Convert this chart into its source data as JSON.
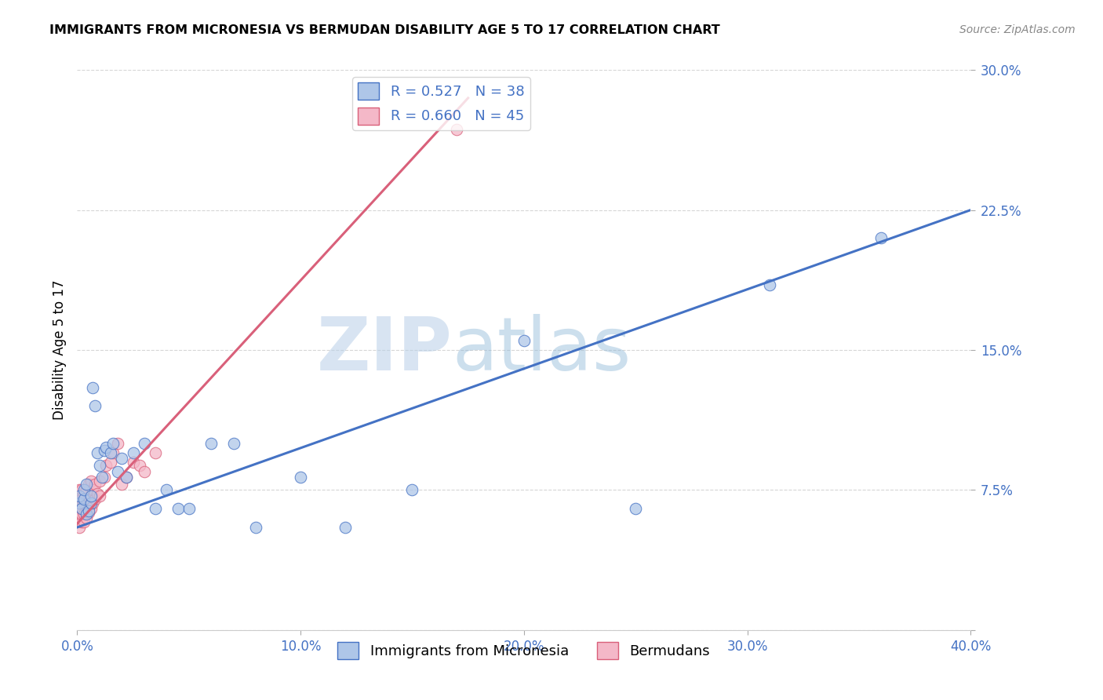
{
  "title": "IMMIGRANTS FROM MICRONESIA VS BERMUDAN DISABILITY AGE 5 TO 17 CORRELATION CHART",
  "source": "Source: ZipAtlas.com",
  "ylabel": "Disability Age 5 to 17",
  "xlim": [
    0,
    0.4
  ],
  "ylim": [
    0,
    0.3
  ],
  "xticks": [
    0.0,
    0.1,
    0.2,
    0.3,
    0.4
  ],
  "yticks": [
    0.0,
    0.075,
    0.15,
    0.225,
    0.3
  ],
  "xticklabels": [
    "0.0%",
    "10.0%",
    "20.0%",
    "30.0%",
    "40.0%"
  ],
  "yticklabels": [
    "",
    "7.5%",
    "15.0%",
    "22.5%",
    "30.0%"
  ],
  "legend_blue_r": "R = 0.527",
  "legend_blue_n": "N = 38",
  "legend_pink_r": "R = 0.660",
  "legend_pink_n": "N = 45",
  "legend_blue_label": "Immigrants from Micronesia",
  "legend_pink_label": "Bermudans",
  "blue_color": "#aec6e8",
  "blue_line_color": "#4472c4",
  "pink_color": "#f4b8c8",
  "pink_line_color": "#d9607a",
  "watermark_zip": "ZIP",
  "watermark_atlas": "atlas",
  "blue_scatter_x": [
    0.001,
    0.001,
    0.002,
    0.003,
    0.003,
    0.004,
    0.004,
    0.005,
    0.006,
    0.006,
    0.007,
    0.008,
    0.009,
    0.01,
    0.011,
    0.012,
    0.013,
    0.015,
    0.016,
    0.018,
    0.02,
    0.022,
    0.025,
    0.03,
    0.035,
    0.04,
    0.045,
    0.05,
    0.06,
    0.07,
    0.08,
    0.1,
    0.12,
    0.15,
    0.2,
    0.25,
    0.31,
    0.36
  ],
  "blue_scatter_y": [
    0.068,
    0.072,
    0.065,
    0.07,
    0.075,
    0.062,
    0.078,
    0.064,
    0.068,
    0.072,
    0.13,
    0.12,
    0.095,
    0.088,
    0.082,
    0.096,
    0.098,
    0.095,
    0.1,
    0.085,
    0.092,
    0.082,
    0.095,
    0.1,
    0.065,
    0.075,
    0.065,
    0.065,
    0.1,
    0.1,
    0.055,
    0.082,
    0.055,
    0.075,
    0.155,
    0.065,
    0.185,
    0.21
  ],
  "pink_scatter_x": [
    0.001,
    0.001,
    0.001,
    0.001,
    0.001,
    0.001,
    0.001,
    0.001,
    0.002,
    0.002,
    0.002,
    0.002,
    0.002,
    0.003,
    0.003,
    0.003,
    0.003,
    0.004,
    0.004,
    0.004,
    0.005,
    0.005,
    0.005,
    0.006,
    0.006,
    0.006,
    0.007,
    0.007,
    0.008,
    0.008,
    0.009,
    0.01,
    0.01,
    0.012,
    0.013,
    0.015,
    0.016,
    0.018,
    0.02,
    0.022,
    0.025,
    0.028,
    0.03,
    0.035,
    0.17
  ],
  "pink_scatter_y": [
    0.055,
    0.06,
    0.062,
    0.065,
    0.068,
    0.07,
    0.072,
    0.075,
    0.058,
    0.062,
    0.065,
    0.07,
    0.075,
    0.058,
    0.062,
    0.068,
    0.073,
    0.06,
    0.068,
    0.075,
    0.063,
    0.07,
    0.078,
    0.065,
    0.072,
    0.08,
    0.068,
    0.075,
    0.07,
    0.078,
    0.073,
    0.072,
    0.08,
    0.082,
    0.088,
    0.09,
    0.095,
    0.1,
    0.078,
    0.082,
    0.09,
    0.088,
    0.085,
    0.095,
    0.268
  ],
  "blue_trendline_x": [
    0.0,
    0.4
  ],
  "blue_trendline_y": [
    0.055,
    0.225
  ],
  "pink_trendline_x": [
    0.0,
    0.175
  ],
  "pink_trendline_y": [
    0.057,
    0.285
  ]
}
